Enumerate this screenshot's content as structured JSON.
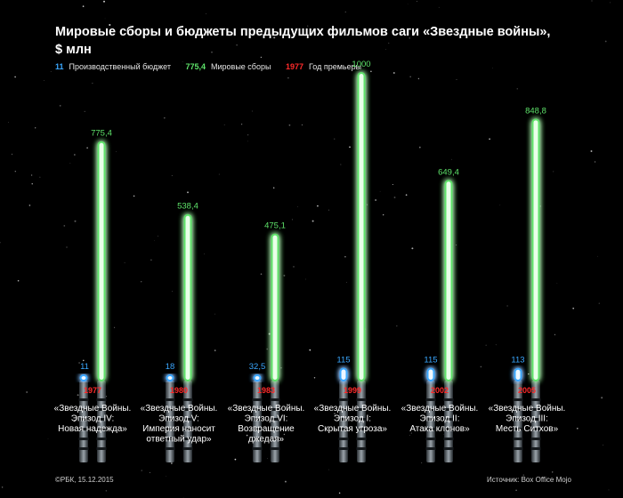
{
  "title_line1": "Мировые сборы и бюджеты предыдущих фильмов саги «Звездные войны»,",
  "title_line2": "$ млн",
  "legend": {
    "budget": {
      "value": "11",
      "label": "Производственный бюджет",
      "color": "#3aa8ff"
    },
    "gross": {
      "value": "775,4",
      "label": "Мировые сборы",
      "color": "#5ee36a"
    },
    "year": {
      "value": "1977",
      "label": "Год премьеры",
      "color": "#ff2a2a"
    }
  },
  "chart_data": {
    "type": "bar",
    "categories": [
      "«Звездные Войны. Эпизод IV: Новая надежда»",
      "«Звездные Войны. Эпизод V: Империя наносит ответный удар»",
      "«Звездные Войны. Эпизод VI: Возвращение джедая»",
      "«Звездные Войны. Эпизод I: Скрытая угроза»",
      "«Звездные Войны. Эпизод II: Атака клонов»",
      "«Звездные Войны. Эпизод III: Месть Ситхов»"
    ],
    "category_lines": [
      [
        "«Звездные Войны.",
        "Эпизод IV:",
        "Новая надежда»"
      ],
      [
        "«Звездные Войны.",
        "Эпизод V:",
        "Империя наносит",
        "ответный удар»"
      ],
      [
        "«Звездные Войны.",
        "Эпизод VI:",
        "Возвращение",
        "джедая»"
      ],
      [
        "«Звездные Войны.",
        "Эпизод I:",
        "Скрытая угроза»"
      ],
      [
        "«Звездные Войны.",
        "Эпизод II:",
        "Атака клонов»"
      ],
      [
        "«Звездные Войны.",
        "Эпизод III:",
        "Месть Ситхов»"
      ]
    ],
    "series": [
      {
        "name": "Производственный бюджет",
        "values": [
          11,
          18,
          32.5,
          115,
          115,
          113
        ],
        "labels": [
          "11",
          "18",
          "32,5",
          "115",
          "115",
          "113"
        ],
        "color": "#3aa8ff"
      },
      {
        "name": "Мировые сборы",
        "values": [
          775.4,
          538.4,
          475.1,
          1000,
          649.4,
          848.8
        ],
        "labels": [
          "775,4",
          "538,4",
          "475,1",
          "1000",
          "649,4",
          "848,8"
        ],
        "color": "#5ee36a"
      }
    ],
    "years": [
      "1977",
      "1980",
      "1983",
      "1999",
      "2002",
      "2005"
    ],
    "ylim": [
      0,
      1000
    ]
  },
  "footer": {
    "left": "©РБК, 15.12.2015",
    "right": "Источник: Box Office Mojo"
  }
}
